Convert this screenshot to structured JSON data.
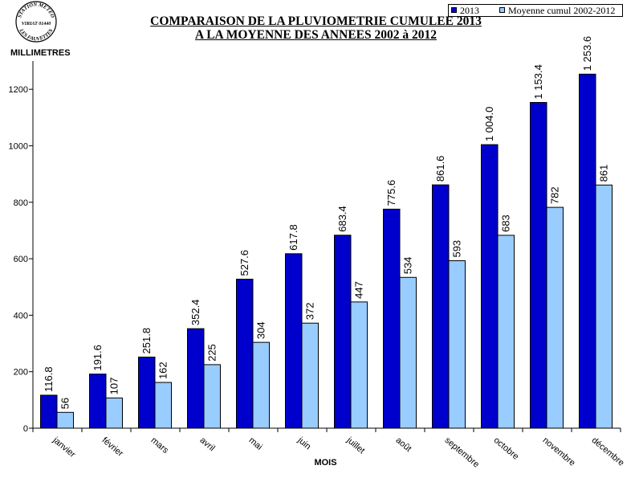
{
  "logo": {
    "top_text": "STATION METEO",
    "middle_text": "VIRIAT 01440",
    "bottom_text": "LES FAUVETTES"
  },
  "chart_data": {
    "type": "bar",
    "title": "COMPARAISON DE LA PLUVIOMETRIE CUMULEE 2013",
    "subtitle": "A LA MOYENNE DES ANNEES 2002 à 2012",
    "xlabel": "MOIS",
    "ylabel": "MILLIMETRES",
    "ylim": [
      0,
      1300
    ],
    "yticks": [
      0,
      200,
      400,
      600,
      800,
      1000,
      1200
    ],
    "grid": false,
    "legend": "top-right",
    "categories": [
      "janvier",
      "février",
      "mars",
      "avril",
      "mai",
      "juin",
      "juillet",
      "août",
      "septembre",
      "octobre",
      "novembre",
      "décembre"
    ],
    "series": [
      {
        "name": "2013",
        "color": "#0000CC",
        "values": [
          116.8,
          191.6,
          251.8,
          352.4,
          527.6,
          617.8,
          683.4,
          775.6,
          861.6,
          1004.0,
          1153.4,
          1253.6
        ],
        "labels": [
          "116.8",
          "191.6",
          "251.8",
          "352.4",
          "527.6",
          "617.8",
          "683.4",
          "775.6",
          "861.6",
          "1 004.0",
          "1 153.4",
          "1 253.6"
        ]
      },
      {
        "name": "Moyenne cumul 2002-2012",
        "color": "#99CCFF",
        "values": [
          56,
          107,
          162,
          225,
          304,
          372,
          447,
          534,
          593,
          683,
          782,
          861
        ],
        "labels": [
          "56",
          "107",
          "162",
          "225",
          "304",
          "372",
          "447",
          "534",
          "593",
          "683",
          "782",
          "861"
        ]
      }
    ]
  }
}
